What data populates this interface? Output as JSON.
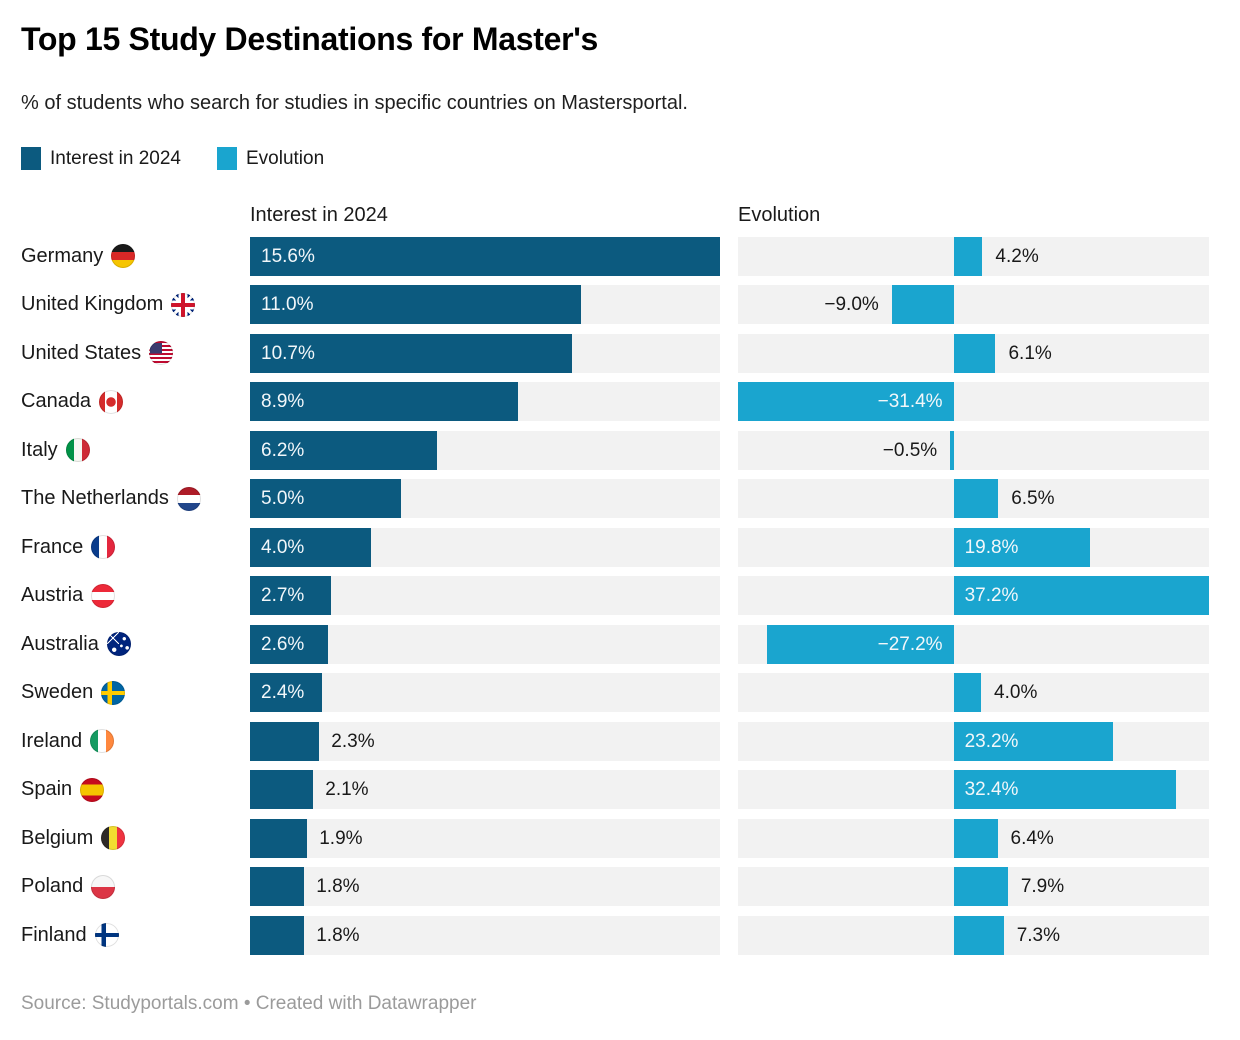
{
  "header": {
    "title": "Top 15 Study Destinations for Master's",
    "subtitle": "% of students who search for studies in specific countries on Mastersportal."
  },
  "footer": {
    "text": "Source: Studyportals.com • Created with Datawrapper"
  },
  "colors": {
    "interest_bar": "#0c5a7f",
    "evolution_bar": "#1aa5cf",
    "track": "#f2f2f2",
    "label_inside": "#f2f7fa",
    "label_outside": "#191919"
  },
  "chart_data": {
    "type": "bar",
    "orientation": "horizontal",
    "title": "Top 15 Study Destinations for Master's",
    "subtitle": "% of students who search for studies in specific countries on Mastersportal.",
    "legend_position": "top-left",
    "grid": false,
    "categories": [
      "Germany",
      "United Kingdom",
      "United States",
      "Canada",
      "Italy",
      "The Netherlands",
      "France",
      "Austria",
      "Australia",
      "Sweden",
      "Ireland",
      "Spain",
      "Belgium",
      "Poland",
      "Finland"
    ],
    "flags": [
      "de",
      "gb",
      "us",
      "ca",
      "it",
      "nl",
      "fr",
      "at",
      "au",
      "se",
      "ie",
      "es",
      "be",
      "pl",
      "fi"
    ],
    "series": [
      {
        "name": "Interest in 2024",
        "color": "#0c5a7f",
        "axis_range": [
          0,
          15.6
        ],
        "values": [
          15.6,
          11.0,
          10.7,
          8.9,
          6.2,
          5.0,
          4.0,
          2.7,
          2.6,
          2.4,
          2.3,
          2.1,
          1.9,
          1.8,
          1.8
        ],
        "labels": [
          "15.6%",
          "11.0%",
          "10.7%",
          "8.9%",
          "6.2%",
          "5.0%",
          "4.0%",
          "2.7%",
          "2.6%",
          "2.4%",
          "2.3%",
          "2.1%",
          "1.9%",
          "1.8%",
          "1.8%"
        ]
      },
      {
        "name": "Evolution",
        "color": "#1aa5cf",
        "axis_range": [
          -31.4,
          37.2
        ],
        "values": [
          4.2,
          -9.0,
          6.1,
          -31.4,
          -0.5,
          6.5,
          19.8,
          37.2,
          -27.2,
          4.0,
          23.2,
          32.4,
          6.4,
          7.9,
          7.3
        ],
        "labels": [
          "4.2%",
          "−9.0%",
          "6.1%",
          "−31.4%",
          "−0.5%",
          "6.5%",
          "19.8%",
          "37.2%",
          "−27.2%",
          "4.0%",
          "23.2%",
          "32.4%",
          "6.4%",
          "7.9%",
          "7.3%"
        ]
      }
    ]
  }
}
